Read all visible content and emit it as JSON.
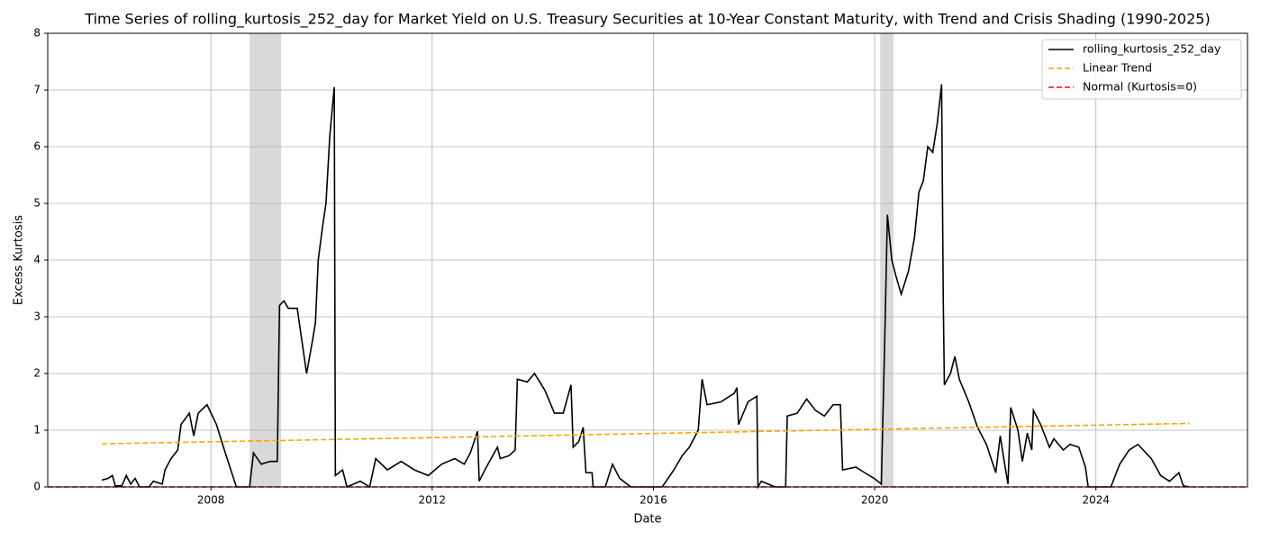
{
  "chart_data": {
    "type": "line",
    "title": "Time Series of rolling_kurtosis_252_day for Market Yield on U.S. Treasury Securities at 10-Year Constant Maturity, with Trend and Crisis Shading (1990-2025)",
    "x_label": "Date",
    "y_label": "Excess Kurtosis",
    "xlim": [
      2005.05,
      2026.74
    ],
    "xticks": [
      2008,
      2012,
      2016,
      2020,
      2024
    ],
    "ylim": [
      0,
      8
    ],
    "yticks": [
      0,
      1,
      2,
      3,
      4,
      5,
      6,
      7,
      8
    ],
    "grid": true,
    "legend": "upper right",
    "shading": {
      "color": "#808080",
      "spans": [
        [
          2008.7,
          2009.27
        ],
        [
          2020.1,
          2020.34
        ]
      ]
    },
    "series": [
      {
        "name": "rolling_kurtosis_252_day",
        "color": "#000000",
        "linestyle": "solid",
        "x": [
          2006.03,
          2006.14,
          2006.22,
          2006.27,
          2006.39,
          2006.47,
          2006.55,
          2006.63,
          2006.71,
          2006.88,
          2006.96,
          2007.12,
          2007.17,
          2007.28,
          2007.4,
          2007.46,
          2007.61,
          2007.69,
          2007.77,
          2007.93,
          2008.1,
          2008.26,
          2008.46,
          2008.7,
          2008.77,
          2008.91,
          2009.07,
          2009.2,
          2009.24,
          2009.32,
          2009.4,
          2009.56,
          2009.73,
          2009.84,
          2009.89,
          2009.94,
          2010.02,
          2010.08,
          2010.15,
          2010.23,
          2010.25,
          2010.38,
          2010.46,
          2010.7,
          2010.87,
          2010.98,
          2011.19,
          2011.44,
          2011.68,
          2011.93,
          2012.17,
          2012.41,
          2012.58,
          2012.69,
          2012.82,
          2012.85,
          2012.98,
          2013.18,
          2013.23,
          2013.39,
          2013.5,
          2013.54,
          2013.72,
          2013.85,
          2014.04,
          2014.21,
          2014.37,
          2014.51,
          2014.55,
          2014.65,
          2014.73,
          2014.78,
          2014.89,
          2014.91,
          2015.13,
          2015.26,
          2015.39,
          2015.59,
          2016.16,
          2016.37,
          2016.52,
          2016.65,
          2016.81,
          2016.88,
          2016.97,
          2017.22,
          2017.46,
          2017.51,
          2017.54,
          2017.71,
          2017.87,
          2017.89,
          2017.95,
          2018.2,
          2018.39,
          2018.42,
          2018.6,
          2018.77,
          2018.93,
          2019.09,
          2019.25,
          2019.38,
          2019.42,
          2019.66,
          2019.82,
          2019.99,
          2020.12,
          2020.18,
          2020.23,
          2020.31,
          2020.39,
          2020.48,
          2020.61,
          2020.72,
          2020.8,
          2020.88,
          2020.96,
          2021.05,
          2021.13,
          2021.21,
          2021.24,
          2021.26,
          2021.37,
          2021.45,
          2021.53,
          2021.7,
          2021.86,
          2022.02,
          2022.19,
          2022.27,
          2022.35,
          2022.41,
          2022.46,
          2022.59,
          2022.67,
          2022.76,
          2022.84,
          2022.87,
          2023.0,
          2023.16,
          2023.24,
          2023.41,
          2023.53,
          2023.69,
          2023.81,
          2023.86,
          2024.27,
          2024.43,
          2024.6,
          2024.76,
          2025.0,
          2025.17,
          2025.33,
          2025.5,
          2025.58,
          2025.69
        ],
        "values": [
          0.12,
          0.15,
          0.2,
          0.02,
          0.02,
          0.2,
          0.05,
          0.15,
          0.0,
          0.0,
          0.1,
          0.05,
          0.3,
          0.5,
          0.65,
          1.1,
          1.3,
          0.9,
          1.3,
          1.45,
          1.1,
          0.6,
          0.0,
          0.0,
          0.6,
          0.4,
          0.45,
          0.45,
          3.2,
          3.28,
          3.15,
          3.15,
          2.0,
          2.6,
          2.9,
          4.0,
          4.6,
          5.0,
          6.2,
          7.05,
          0.2,
          0.3,
          0.0,
          0.1,
          0.0,
          0.5,
          0.3,
          0.45,
          0.3,
          0.2,
          0.4,
          0.5,
          0.4,
          0.6,
          0.98,
          0.1,
          0.35,
          0.7,
          0.5,
          0.55,
          0.65,
          1.9,
          1.85,
          2.0,
          1.7,
          1.3,
          1.3,
          1.8,
          0.7,
          0.8,
          1.05,
          0.25,
          0.25,
          0.0,
          0.0,
          0.4,
          0.15,
          0.0,
          0.0,
          0.3,
          0.55,
          0.7,
          1.0,
          1.9,
          1.45,
          1.5,
          1.65,
          1.75,
          1.1,
          1.5,
          1.6,
          0.0,
          0.1,
          0.0,
          0.0,
          1.25,
          1.3,
          1.55,
          1.35,
          1.25,
          1.45,
          1.45,
          0.3,
          0.35,
          0.25,
          0.15,
          0.05,
          2.5,
          4.8,
          4.0,
          3.7,
          3.4,
          3.8,
          4.4,
          5.2,
          5.4,
          6.0,
          5.9,
          6.4,
          7.1,
          3.3,
          1.8,
          2.0,
          2.3,
          1.9,
          1.5,
          1.05,
          0.75,
          0.25,
          0.9,
          0.4,
          0.05,
          1.4,
          1.0,
          0.45,
          0.95,
          0.65,
          1.35,
          1.1,
          0.7,
          0.85,
          0.65,
          0.75,
          0.7,
          0.35,
          0.0,
          0.0,
          0.4,
          0.65,
          0.75,
          0.5,
          0.2,
          0.1,
          0.25,
          0.02,
          0.0
        ]
      },
      {
        "name": "Linear Trend",
        "color": "#ffa500",
        "linestyle": "dashed",
        "x": [
          2006.03,
          2025.69
        ],
        "values": [
          0.76,
          1.12
        ]
      },
      {
        "name": "Normal (Kurtosis=0)",
        "color": "#ff0000",
        "linestyle": "dashed",
        "x": [
          2005.05,
          2026.74
        ],
        "values": [
          0,
          0
        ]
      }
    ]
  }
}
